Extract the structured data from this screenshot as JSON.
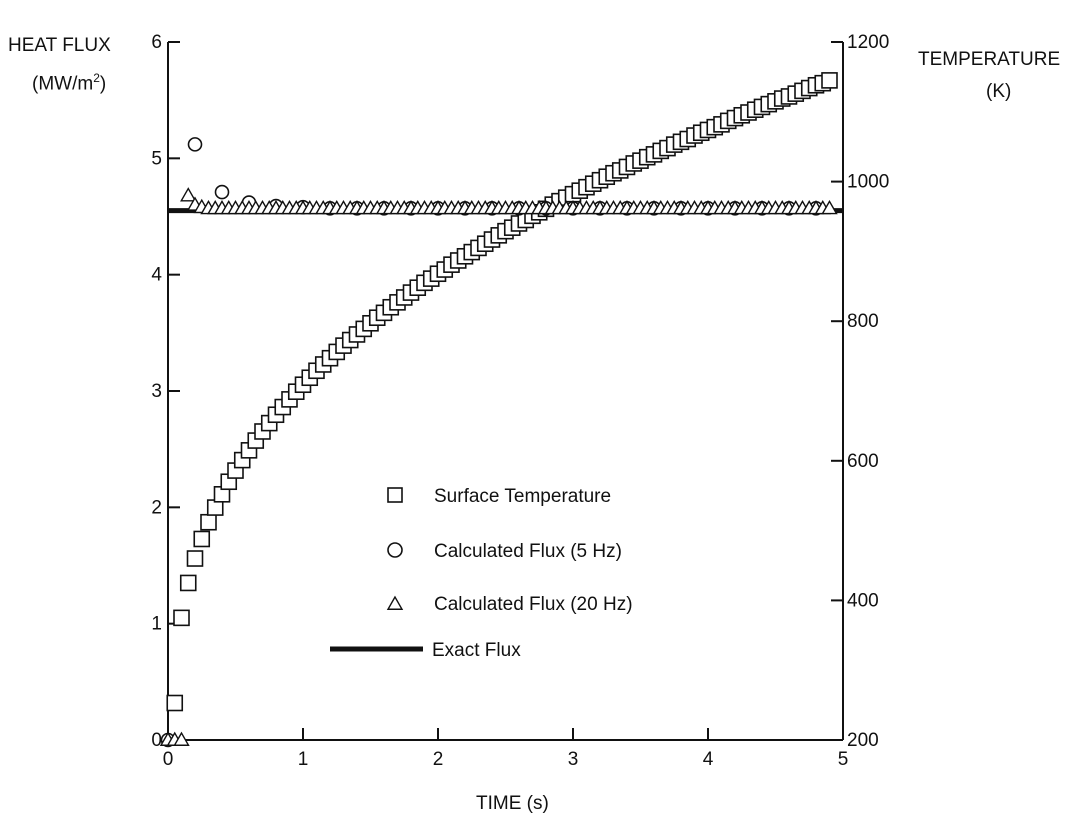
{
  "chart_data": {
    "type": "scatter",
    "title": "",
    "xlabel": "TIME (s)",
    "ylabel_left": [
      "HEAT FLUX",
      "(MW/m",
      "2",
      ")"
    ],
    "ylabel_right": [
      "TEMPERATURE",
      "(K)"
    ],
    "xlim": [
      0,
      5
    ],
    "ylim_left": [
      0,
      6
    ],
    "ylim_right": [
      200,
      1200
    ],
    "x_ticks": [
      "0",
      "1",
      "2",
      "3",
      "4",
      "5"
    ],
    "y_left_ticks": [
      "0",
      "1",
      "2",
      "3",
      "4",
      "5",
      "6"
    ],
    "y_right_ticks": [
      "200",
      "400",
      "600",
      "800",
      "1000",
      "1200"
    ],
    "grid": false,
    "legend_position": "center",
    "series": [
      {
        "name": "Surface Temperature",
        "marker": "square",
        "axis": "right",
        "x": [
          0.05,
          0.1,
          0.15,
          0.2,
          0.25,
          0.3,
          0.35,
          0.4,
          0.45,
          0.5,
          0.55,
          0.6,
          0.65,
          0.7,
          0.75,
          0.8,
          0.85,
          0.9,
          0.95,
          1.0,
          1.05,
          1.1,
          1.15,
          1.2,
          1.25,
          1.3,
          1.35,
          1.4,
          1.45,
          1.5,
          1.55,
          1.6,
          1.65,
          1.7,
          1.75,
          1.8,
          1.85,
          1.9,
          1.95,
          2.0,
          2.05,
          2.1,
          2.15,
          2.2,
          2.25,
          2.3,
          2.35,
          2.4,
          2.45,
          2.5,
          2.55,
          2.6,
          2.65,
          2.7,
          2.75,
          2.8,
          2.85,
          2.9,
          2.95,
          3.0,
          3.05,
          3.1,
          3.15,
          3.2,
          3.25,
          3.3,
          3.35,
          3.4,
          3.45,
          3.5,
          3.55,
          3.6,
          3.65,
          3.7,
          3.75,
          3.8,
          3.85,
          3.9,
          3.95,
          4.0,
          4.05,
          4.1,
          4.15,
          4.2,
          4.25,
          4.3,
          4.35,
          4.4,
          4.45,
          4.5,
          4.55,
          4.6,
          4.65,
          4.7,
          4.75,
          4.8,
          4.85,
          4.9
        ],
        "values": [
          253,
          375,
          425,
          460,
          488,
          512,
          533,
          552,
          570,
          586,
          601,
          615,
          629,
          642,
          654,
          666,
          677,
          688,
          699,
          709,
          719,
          729,
          738,
          747,
          756,
          765,
          773,
          781,
          789,
          797,
          805,
          812,
          820,
          827,
          834,
          841,
          848,
          855,
          861,
          868,
          874,
          881,
          887,
          893,
          899,
          905,
          911,
          917,
          923,
          929,
          934,
          940,
          945,
          951,
          956,
          961,
          967,
          972,
          977,
          982,
          987,
          992,
          997,
          1002,
          1007,
          1012,
          1016,
          1021,
          1026,
          1030,
          1035,
          1039,
          1044,
          1048,
          1053,
          1057,
          1061,
          1066,
          1070,
          1074,
          1078,
          1082,
          1087,
          1091,
          1095,
          1099,
          1103,
          1107,
          1111,
          1115,
          1119,
          1122,
          1126,
          1130,
          1134,
          1138,
          1141,
          1145
        ]
      },
      {
        "name": "Calculated Flux  (5 Hz)",
        "marker": "circle",
        "axis": "left",
        "x": [
          0.0,
          0.2,
          0.4,
          0.6,
          0.8,
          1.0,
          1.2,
          1.4,
          1.6,
          1.8,
          2.0,
          2.2,
          2.4,
          2.6,
          2.8,
          3.0,
          3.2,
          3.4,
          3.6,
          3.8,
          4.0,
          4.2,
          4.4,
          4.6,
          4.8
        ],
        "values": [
          0.0,
          5.12,
          4.71,
          4.62,
          4.59,
          4.58,
          4.57,
          4.57,
          4.57,
          4.57,
          4.57,
          4.57,
          4.57,
          4.57,
          4.57,
          4.57,
          4.57,
          4.57,
          4.57,
          4.57,
          4.57,
          4.57,
          4.57,
          4.57,
          4.57
        ]
      },
      {
        "name": "Calculated Flux (20 Hz)",
        "marker": "triangle",
        "axis": "left",
        "x": [
          0.0,
          0.05,
          0.1,
          0.15,
          0.2,
          0.25,
          0.3,
          0.35,
          0.4,
          0.45,
          0.5,
          0.55,
          0.6,
          0.65,
          0.7,
          0.75,
          0.8,
          0.85,
          0.9,
          0.95,
          1.0,
          1.05,
          1.1,
          1.15,
          1.2,
          1.25,
          1.3,
          1.35,
          1.4,
          1.45,
          1.5,
          1.55,
          1.6,
          1.65,
          1.7,
          1.75,
          1.8,
          1.85,
          1.9,
          1.95,
          2.0,
          2.05,
          2.1,
          2.15,
          2.2,
          2.25,
          2.3,
          2.35,
          2.4,
          2.45,
          2.5,
          2.55,
          2.6,
          2.65,
          2.7,
          2.75,
          2.8,
          2.85,
          2.9,
          2.95,
          3.0,
          3.05,
          3.1,
          3.15,
          3.2,
          3.25,
          3.3,
          3.35,
          3.4,
          3.45,
          3.5,
          3.55,
          3.6,
          3.65,
          3.7,
          3.75,
          3.8,
          3.85,
          3.9,
          3.95,
          4.0,
          4.05,
          4.1,
          4.15,
          4.2,
          4.25,
          4.3,
          4.35,
          4.4,
          4.45,
          4.5,
          4.55,
          4.6,
          4.65,
          4.7,
          4.75,
          4.8,
          4.85,
          4.9
        ],
        "values": [
          0.0,
          0.0,
          0.0,
          4.68,
          4.6,
          4.58,
          4.57,
          4.57,
          4.57,
          4.57,
          4.57,
          4.57,
          4.57,
          4.57,
          4.57,
          4.57,
          4.57,
          4.57,
          4.57,
          4.57,
          4.57,
          4.57,
          4.57,
          4.57,
          4.57,
          4.57,
          4.57,
          4.57,
          4.57,
          4.57,
          4.57,
          4.57,
          4.57,
          4.57,
          4.57,
          4.57,
          4.57,
          4.57,
          4.57,
          4.57,
          4.57,
          4.57,
          4.57,
          4.57,
          4.57,
          4.57,
          4.57,
          4.57,
          4.57,
          4.57,
          4.57,
          4.57,
          4.57,
          4.57,
          4.57,
          4.57,
          4.57,
          4.57,
          4.57,
          4.57,
          4.57,
          4.57,
          4.57,
          4.57,
          4.57,
          4.57,
          4.57,
          4.57,
          4.57,
          4.57,
          4.57,
          4.57,
          4.57,
          4.57,
          4.57,
          4.57,
          4.57,
          4.57,
          4.57,
          4.57,
          4.57,
          4.57,
          4.57,
          4.57,
          4.57,
          4.57,
          4.57,
          4.57,
          4.57,
          4.57,
          4.57,
          4.57,
          4.57,
          4.57,
          4.57,
          4.57,
          4.57,
          4.57,
          4.57
        ]
      },
      {
        "name": "Exact Flux",
        "marker": "line",
        "axis": "left",
        "x": [
          0,
          5
        ],
        "values": [
          4.55,
          4.55
        ]
      }
    ]
  }
}
